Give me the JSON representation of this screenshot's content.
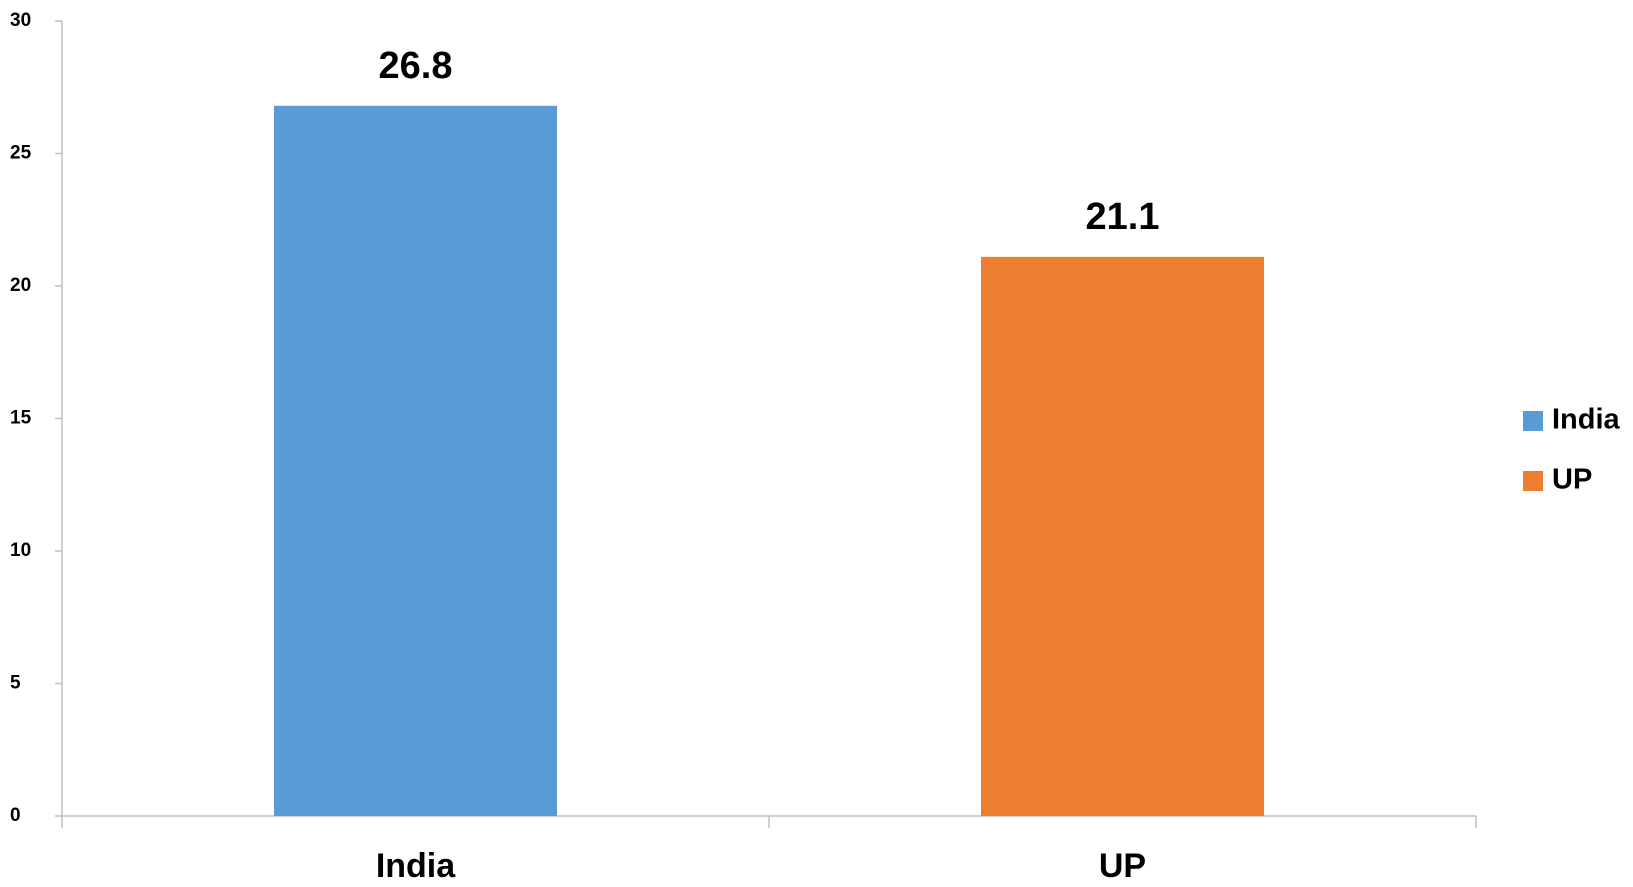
{
  "chart_data": {
    "type": "bar",
    "categories": [
      "India",
      "UP"
    ],
    "series": [
      {
        "name": "India",
        "color": "#5b9bd5",
        "values": [
          26.8,
          null
        ]
      },
      {
        "name": "UP",
        "color": "#ed7d31",
        "values": [
          null,
          21.1
        ]
      }
    ],
    "ylim": [
      0,
      30
    ],
    "yticks": [
      0,
      5,
      10,
      15,
      20,
      25,
      30
    ],
    "grid": false,
    "legend": "right"
  }
}
